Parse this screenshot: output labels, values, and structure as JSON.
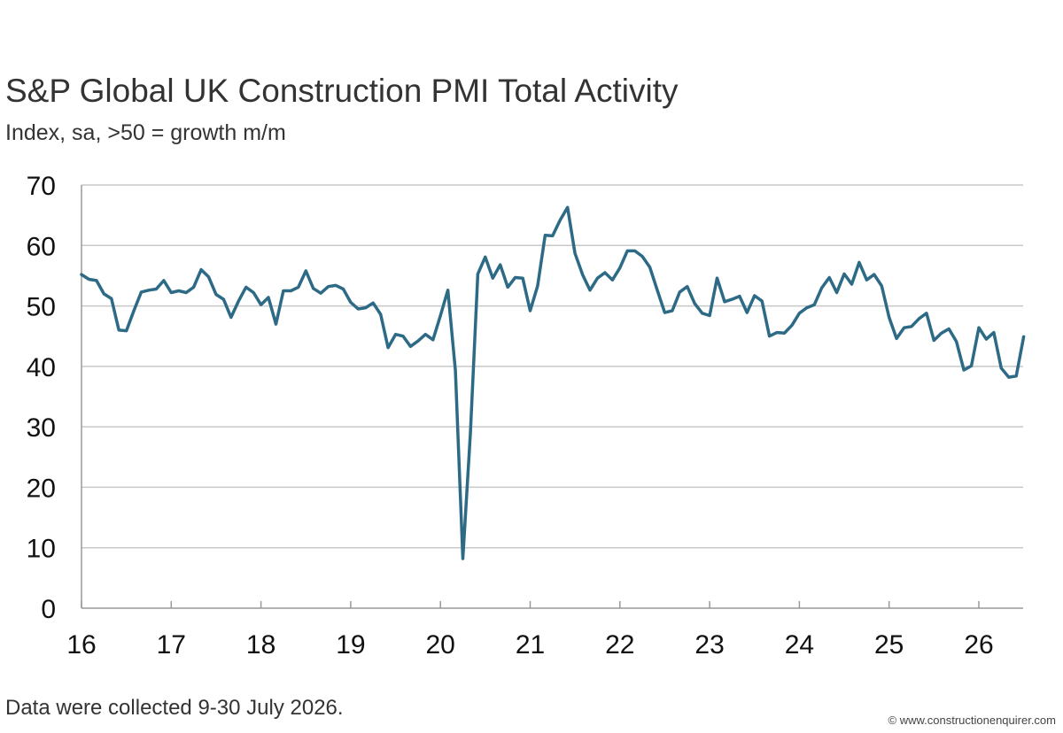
{
  "header": {
    "title": "S&P Global UK Construction PMI Total Activity",
    "subtitle": "Index, sa, >50 = growth m/m"
  },
  "footer": {
    "note": "Data were collected 9-30 July 2026.",
    "credit": "© www.constructionenquirer.com"
  },
  "colors": {
    "series_line": "#2d6a86",
    "gridline": "#c8c8c8",
    "axis": "#999999"
  },
  "chart_data": {
    "type": "line",
    "title": "S&P Global UK Construction PMI Total Activity",
    "subtitle": "Index, sa, >50 = growth m/m",
    "xlabel": "",
    "ylabel": "",
    "ylim": [
      0,
      70
    ],
    "yticks": [
      0,
      10,
      20,
      30,
      40,
      50,
      60,
      70
    ],
    "x_tick_labels": [
      "16",
      "17",
      "18",
      "19",
      "20",
      "21",
      "22",
      "23",
      "24",
      "25",
      "26"
    ],
    "x_start": "2016-01",
    "x_end": "2026-07",
    "grid": true,
    "legend": false,
    "series": [
      {
        "x": [
          "2016-01",
          "2016-02",
          "2016-03",
          "2016-04",
          "2016-05",
          "2016-06",
          "2016-07",
          "2016-08",
          "2016-09",
          "2016-10",
          "2016-11",
          "2016-12",
          "2017-01",
          "2017-02",
          "2017-03",
          "2017-04",
          "2017-05",
          "2017-06",
          "2017-07",
          "2017-08",
          "2017-09",
          "2017-10",
          "2017-11",
          "2017-12",
          "2018-01",
          "2018-02",
          "2018-03",
          "2018-04",
          "2018-05",
          "2018-06",
          "2018-07",
          "2018-08",
          "2018-09",
          "2018-10",
          "2018-11",
          "2018-12",
          "2019-01",
          "2019-02",
          "2019-03",
          "2019-04",
          "2019-05",
          "2019-06",
          "2019-07",
          "2019-08",
          "2019-09",
          "2019-10",
          "2019-11",
          "2019-12",
          "2020-01",
          "2020-02",
          "2020-03",
          "2020-04",
          "2020-05",
          "2020-06",
          "2020-07",
          "2020-08",
          "2020-09",
          "2020-10",
          "2020-11",
          "2020-12",
          "2021-01",
          "2021-02",
          "2021-03",
          "2021-04",
          "2021-05",
          "2021-06",
          "2021-07",
          "2021-08",
          "2021-09",
          "2021-10",
          "2021-11",
          "2021-12",
          "2022-01",
          "2022-02",
          "2022-03",
          "2022-04",
          "2022-05",
          "2022-06",
          "2022-07",
          "2022-08",
          "2022-09",
          "2022-10",
          "2022-11",
          "2022-12",
          "2023-01",
          "2023-02",
          "2023-03",
          "2023-04",
          "2023-05",
          "2023-06",
          "2023-07",
          "2023-08",
          "2023-09",
          "2023-10",
          "2023-11",
          "2023-12",
          "2024-01",
          "2024-02",
          "2024-03",
          "2024-04",
          "2024-05",
          "2024-06",
          "2024-07",
          "2024-08",
          "2024-09",
          "2024-10",
          "2024-11",
          "2024-12",
          "2025-01",
          "2025-02",
          "2025-03",
          "2025-04",
          "2025-05",
          "2025-06",
          "2025-07",
          "2025-08",
          "2025-09",
          "2025-10",
          "2025-11",
          "2025-12",
          "2026-01",
          "2026-02",
          "2026-03",
          "2026-04",
          "2026-05",
          "2026-06",
          "2026-07"
        ],
        "values": [
          55.2,
          54.4,
          54.2,
          52.0,
          51.2,
          46.0,
          45.9,
          49.2,
          52.3,
          52.6,
          52.8,
          54.2,
          52.2,
          52.5,
          52.2,
          53.1,
          56.0,
          54.8,
          51.9,
          51.1,
          48.1,
          50.8,
          53.1,
          52.2,
          50.2,
          51.4,
          47.0,
          52.5,
          52.5,
          53.1,
          55.8,
          52.9,
          52.1,
          53.2,
          53.4,
          52.8,
          50.6,
          49.5,
          49.7,
          50.5,
          48.6,
          43.1,
          45.3,
          45.0,
          43.3,
          44.2,
          45.3,
          44.4,
          48.4,
          52.6,
          39.3,
          8.2,
          28.9,
          55.3,
          58.1,
          54.6,
          56.8,
          53.1,
          54.7,
          54.6,
          49.2,
          53.3,
          61.7,
          61.6,
          64.2,
          66.3,
          58.7,
          55.2,
          52.6,
          54.6,
          55.5,
          54.3,
          56.3,
          59.1,
          59.1,
          58.2,
          56.4,
          52.6,
          48.9,
          49.2,
          52.3,
          53.2,
          50.4,
          48.8,
          48.4,
          54.6,
          50.7,
          51.1,
          51.6,
          48.9,
          51.7,
          50.8,
          45.0,
          45.6,
          45.5,
          46.8,
          48.8,
          49.7,
          50.2,
          53.0,
          54.7,
          52.2,
          55.3,
          53.6,
          57.2,
          54.3,
          55.2,
          53.3,
          48.1,
          44.6,
          46.4,
          46.6,
          47.9,
          48.8,
          44.3,
          45.5,
          46.2,
          44.1,
          39.4,
          40.1,
          46.4,
          44.5,
          45.6,
          39.7,
          38.2,
          38.4,
          44.9
        ]
      }
    ]
  }
}
